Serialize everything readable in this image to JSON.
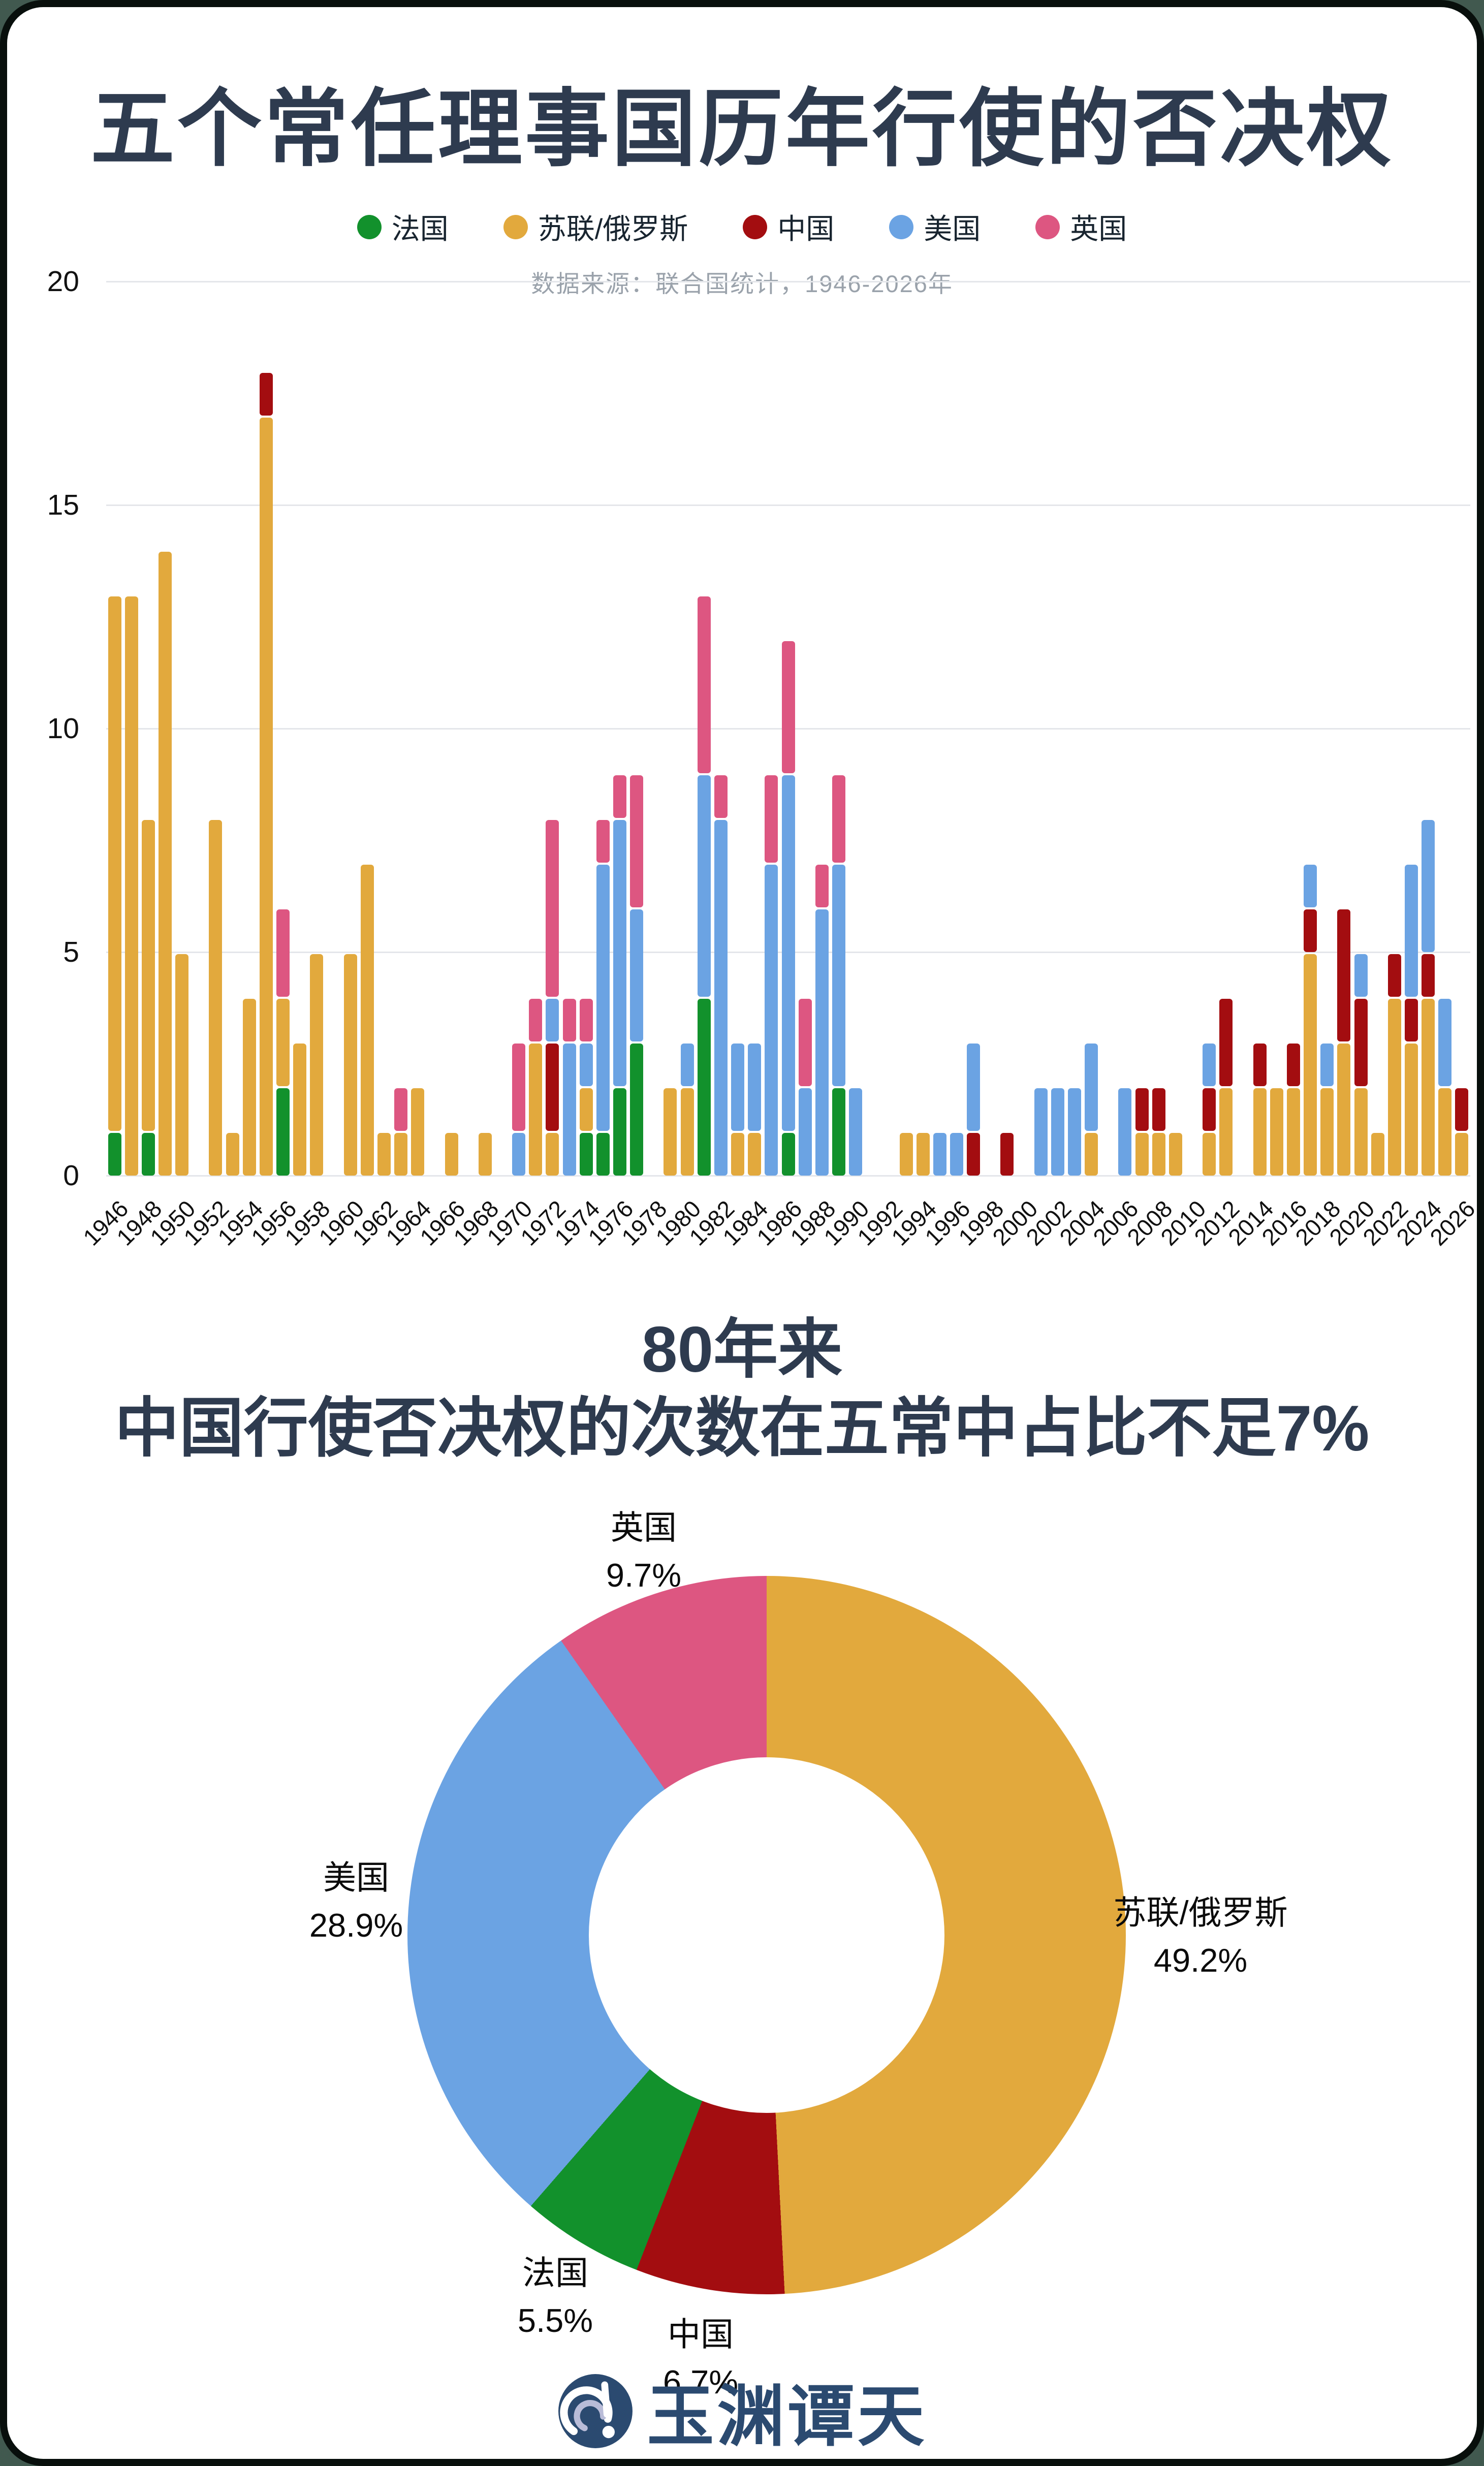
{
  "title": "五个常任理事国历年行使的否决权",
  "source_note": "数据来源：联合国统计，1946-2026年",
  "legend": [
    {
      "label": "法国",
      "color": "#12912c"
    },
    {
      "label": "苏联/俄罗斯",
      "color": "#e2a93d"
    },
    {
      "label": "中国",
      "color": "#a30d10"
    },
    {
      "label": "美国",
      "color": "#6ba3e3"
    },
    {
      "label": "英国",
      "color": "#dd5681"
    }
  ],
  "pie_title_line1": "80年来",
  "pie_title_line2": "中国行使否决权的次数在五常中占比不足7%",
  "logo_text": "玉渊谭天",
  "chart_data": [
    {
      "type": "bar",
      "stacked": true,
      "title": "五个常任理事国历年行使的否决权",
      "xlabel": "",
      "ylabel": "",
      "x_start": 1946,
      "x_end": 2026,
      "x_tick_step": 2,
      "ylim": [
        0,
        20
      ],
      "y_ticks": [
        0,
        5,
        10,
        15,
        20
      ],
      "grid": true,
      "legend_position": "top",
      "series": [
        {
          "name": "法国",
          "color": "#12912c",
          "values": [
            1,
            0,
            1,
            0,
            0,
            0,
            0,
            0,
            0,
            0,
            2,
            0,
            0,
            0,
            0,
            0,
            0,
            0,
            0,
            0,
            0,
            0,
            0,
            0,
            0,
            0,
            0,
            0,
            1,
            1,
            2,
            3,
            0,
            0,
            0,
            4,
            0,
            0,
            0,
            0,
            1,
            0,
            0,
            2,
            0,
            0,
            0,
            0,
            0,
            0,
            0,
            0,
            0,
            0,
            0,
            0,
            0,
            0,
            0,
            0,
            0,
            0,
            0,
            0,
            0,
            0,
            0,
            0,
            0,
            0,
            0,
            0,
            0,
            0,
            0,
            0,
            0,
            0,
            0,
            0,
            0
          ]
        },
        {
          "name": "苏联/俄罗斯",
          "color": "#e2a93d",
          "values": [
            12,
            13,
            7,
            14,
            5,
            0,
            8,
            1,
            4,
            17,
            2,
            3,
            5,
            0,
            5,
            7,
            1,
            1,
            2,
            0,
            1,
            0,
            1,
            0,
            0,
            3,
            1,
            0,
            1,
            0,
            0,
            0,
            0,
            2,
            2,
            0,
            0,
            1,
            1,
            0,
            0,
            0,
            0,
            0,
            0,
            0,
            0,
            1,
            1,
            0,
            0,
            0,
            0,
            0,
            0,
            0,
            0,
            0,
            1,
            0,
            0,
            1,
            1,
            1,
            0,
            1,
            2,
            0,
            2,
            2,
            2,
            5,
            2,
            3,
            2,
            1,
            4,
            3,
            4,
            2,
            1
          ]
        },
        {
          "name": "中国",
          "color": "#a30d10",
          "values": [
            0,
            0,
            0,
            0,
            0,
            0,
            0,
            0,
            0,
            1,
            0,
            0,
            0,
            0,
            0,
            0,
            0,
            0,
            0,
            0,
            0,
            0,
            0,
            0,
            0,
            0,
            2,
            0,
            0,
            0,
            0,
            0,
            0,
            0,
            0,
            0,
            0,
            0,
            0,
            0,
            0,
            0,
            0,
            0,
            0,
            0,
            0,
            0,
            0,
            0,
            0,
            1,
            0,
            1,
            0,
            0,
            0,
            0,
            0,
            0,
            0,
            1,
            1,
            0,
            0,
            1,
            2,
            0,
            1,
            0,
            1,
            1,
            0,
            3,
            2,
            0,
            1,
            1,
            1,
            0,
            1
          ]
        },
        {
          "name": "美国",
          "color": "#6ba3e3",
          "values": [
            0,
            0,
            0,
            0,
            0,
            0,
            0,
            0,
            0,
            0,
            0,
            0,
            0,
            0,
            0,
            0,
            0,
            0,
            0,
            0,
            0,
            0,
            0,
            0,
            1,
            0,
            1,
            3,
            1,
            6,
            6,
            3,
            0,
            0,
            1,
            5,
            8,
            2,
            2,
            7,
            8,
            2,
            6,
            5,
            2,
            0,
            0,
            0,
            0,
            1,
            1,
            2,
            0,
            0,
            0,
            2,
            2,
            2,
            2,
            0,
            2,
            0,
            0,
            0,
            0,
            1,
            0,
            0,
            0,
            0,
            0,
            1,
            1,
            0,
            1,
            0,
            0,
            3,
            3,
            2,
            0
          ]
        },
        {
          "name": "英国",
          "color": "#dd5681",
          "values": [
            0,
            0,
            0,
            0,
            0,
            0,
            0,
            0,
            0,
            0,
            2,
            0,
            0,
            0,
            0,
            0,
            0,
            1,
            0,
            0,
            0,
            0,
            0,
            0,
            2,
            1,
            4,
            1,
            1,
            1,
            1,
            3,
            0,
            0,
            0,
            4,
            1,
            0,
            0,
            2,
            3,
            2,
            1,
            2,
            0,
            0,
            0,
            0,
            0,
            0,
            0,
            0,
            0,
            0,
            0,
            0,
            0,
            0,
            0,
            0,
            0,
            0,
            0,
            0,
            0,
            0,
            0,
            0,
            0,
            0,
            0,
            0,
            0,
            0,
            0,
            0,
            0,
            0,
            0,
            0,
            0
          ]
        }
      ]
    },
    {
      "type": "pie",
      "subtype": "donut",
      "title": "80年来 中国行使否决权的次数在五常中占比不足7%",
      "start_angle": "top",
      "direction": "clockwise",
      "segments": [
        {
          "label": "苏联/俄罗斯",
          "pct": 49.2,
          "color": "#e2a93d"
        },
        {
          "label": "中国",
          "pct": 6.7,
          "color": "#a30d10"
        },
        {
          "label": "法国",
          "pct": 5.5,
          "color": "#12912c"
        },
        {
          "label": "美国",
          "pct": 28.9,
          "color": "#6ba3e3"
        },
        {
          "label": "英国",
          "pct": 9.7,
          "color": "#dd5681"
        }
      ]
    }
  ]
}
